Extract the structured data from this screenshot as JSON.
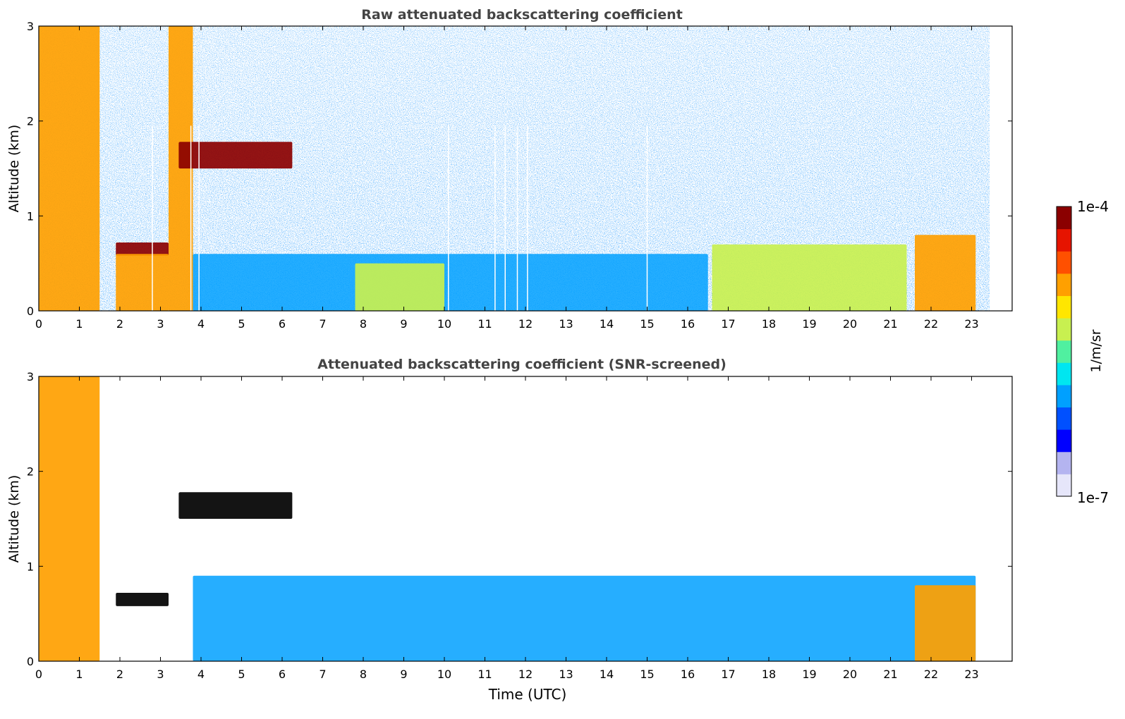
{
  "figure": {
    "colorbar": {
      "label": "1/m/sr",
      "max_label": "1e-4",
      "min_label": "1e-7",
      "range": [
        1e-07,
        0.0001
      ],
      "scale": "log",
      "colormap": "jet",
      "colors": [
        "#e6e6fa",
        "#b4b4f0",
        "#0000ff",
        "#0050ff",
        "#00a0ff",
        "#00e6f0",
        "#50f0a0",
        "#c8f050",
        "#ffe600",
        "#ffa000",
        "#ff5000",
        "#e61400",
        "#8b0000"
      ]
    },
    "xlabel": "Time (UTC)"
  },
  "chart_data": [
    {
      "type": "heatmap",
      "title": "Raw attenuated backscattering coefficient",
      "xlabel": "",
      "ylabel": "Altitude (km)",
      "xlim": [
        0,
        24
      ],
      "ylim": [
        0,
        3
      ],
      "x_ticks": [
        "0",
        "1",
        "2",
        "3",
        "4",
        "5",
        "6",
        "7",
        "8",
        "9",
        "10",
        "11",
        "12",
        "13",
        "14",
        "15",
        "16",
        "17",
        "18",
        "19",
        "20",
        "21",
        "22",
        "23"
      ],
      "y_ticks": [
        "0",
        "1",
        "2",
        "3"
      ],
      "data_end_hour": 23.1,
      "missing_profiles_hours": [
        2.8,
        3.75,
        3.95,
        10.1,
        11.25,
        11.5,
        11.8,
        12.05,
        15.0
      ],
      "features": [
        {
          "feature": "precipitation/fog column",
          "x_start": 0.0,
          "x_end": 1.5,
          "y_start": 0.0,
          "y_end": 3.0,
          "level": "high"
        },
        {
          "feature": "low cloud",
          "x_start": 1.9,
          "x_end": 3.2,
          "y_start": 0.58,
          "y_end": 0.72,
          "level": "max"
        },
        {
          "feature": "precipitation",
          "x_start": 1.9,
          "x_end": 3.2,
          "y_start": 0.0,
          "y_end": 0.6,
          "level": "high"
        },
        {
          "feature": "precipitation/cloud column",
          "x_start": 3.2,
          "x_end": 3.8,
          "y_start": 0.0,
          "y_end": 3.0,
          "level": "high"
        },
        {
          "feature": "elevated cloud layer",
          "x_start": 3.45,
          "x_end": 6.25,
          "y_start": 1.5,
          "y_end": 1.78,
          "level": "max"
        },
        {
          "feature": "boundary layer aerosol",
          "x_start": 3.8,
          "x_end": 16.5,
          "y_start": 0.0,
          "y_end": 0.6,
          "level": "medium"
        },
        {
          "feature": "aerosol maximum",
          "x_start": 7.8,
          "x_end": 10.0,
          "y_start": 0.0,
          "y_end": 0.5,
          "level": "medium-high"
        },
        {
          "feature": "cloud base / precipitation",
          "x_start": 16.6,
          "x_end": 21.4,
          "y_start": 0.0,
          "y_end": 0.7,
          "level": "medium-high"
        },
        {
          "feature": "low cloud and precipitation",
          "x_start": 21.6,
          "x_end": 23.1,
          "y_start": 0.0,
          "y_end": 0.8,
          "level": "high"
        }
      ]
    },
    {
      "type": "heatmap",
      "title": "Attenuated backscattering coefficient (SNR-screened)",
      "xlabel": "Time (UTC)",
      "ylabel": "Altitude (km)",
      "xlim": [
        0,
        24
      ],
      "ylim": [
        0,
        3
      ],
      "x_ticks": [
        "0",
        "1",
        "2",
        "3",
        "4",
        "5",
        "6",
        "7",
        "8",
        "9",
        "10",
        "11",
        "12",
        "13",
        "14",
        "15",
        "16",
        "17",
        "18",
        "19",
        "20",
        "21",
        "22",
        "23"
      ],
      "y_ticks": [
        "0",
        "1",
        "2",
        "3"
      ],
      "data_end_hour": 23.1,
      "screened": "low-SNR pixels removed",
      "features": [
        {
          "feature": "precipitation/fog column",
          "x_start": 0.0,
          "x_end": 1.5,
          "y_start": 0.0,
          "y_end": 3.0,
          "level": "high"
        },
        {
          "feature": "low cloud",
          "x_start": 1.9,
          "x_end": 3.2,
          "y_start": 0.58,
          "y_end": 0.72,
          "level": "saturated"
        },
        {
          "feature": "elevated cloud layer",
          "x_start": 3.45,
          "x_end": 6.25,
          "y_start": 1.5,
          "y_end": 1.78,
          "level": "saturated"
        },
        {
          "feature": "boundary layer aerosol",
          "x_start": 3.8,
          "x_end": 23.1,
          "y_start": 0.0,
          "y_end": 0.9,
          "level": "medium"
        },
        {
          "feature": "low cloud and precipitation",
          "x_start": 21.6,
          "x_end": 23.1,
          "y_start": 0.0,
          "y_end": 0.8,
          "level": "high"
        }
      ]
    }
  ]
}
